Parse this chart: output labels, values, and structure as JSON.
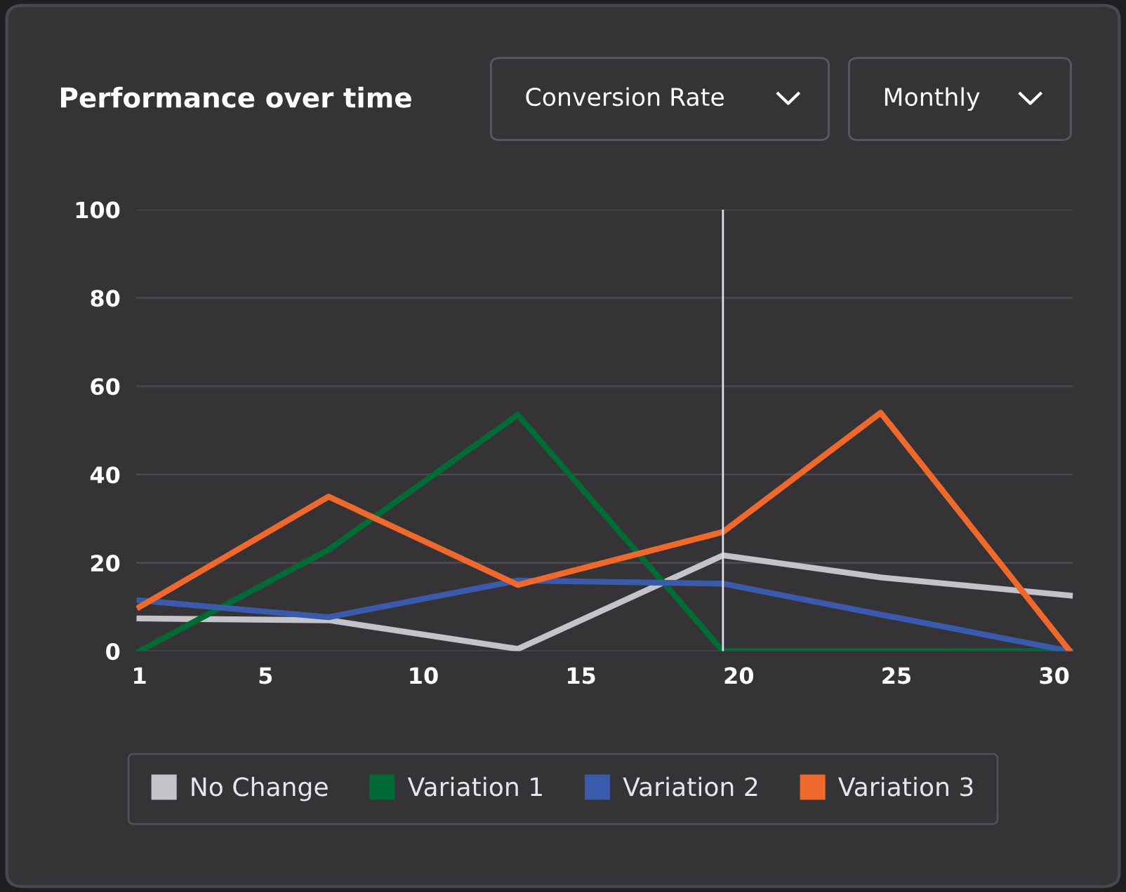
{
  "chart_data": {
    "type": "line",
    "title": "Performance over time",
    "annotations": [
      "Conversion Rate",
      "Monthly"
    ],
    "x": [
      1,
      7,
      13,
      19.5,
      24.5,
      30.5
    ],
    "series": [
      {
        "name": "No Change",
        "color": "#c5c3ca",
        "values": [
          7.4,
          7,
          0.5,
          21.7,
          16.7,
          12.6
        ]
      },
      {
        "name": "Variation 1",
        "color": "#006b35",
        "values": [
          0,
          23,
          53.5,
          0,
          0,
          0
        ]
      },
      {
        "name": "Variation 2",
        "color": "#3a5bab",
        "values": [
          11.5,
          7.7,
          16,
          15.3,
          8.3,
          0
        ]
      },
      {
        "name": "Variation 3",
        "color": "#f0692c",
        "values": [
          10,
          35,
          15,
          27,
          54,
          0
        ]
      }
    ],
    "xlim": [
      0.9,
      30.6
    ],
    "xticks": [
      1,
      5,
      10,
      15,
      20,
      25,
      30
    ],
    "ylim": [
      0,
      100
    ],
    "yticks": [
      0,
      20,
      40,
      60,
      80,
      100
    ],
    "ref_lines": [
      {
        "axis": "x",
        "value": 19.5,
        "color": "#e0dee3"
      }
    ],
    "grid": "y",
    "legend": "bottom",
    "line_style": "solid",
    "marker": "none"
  }
}
